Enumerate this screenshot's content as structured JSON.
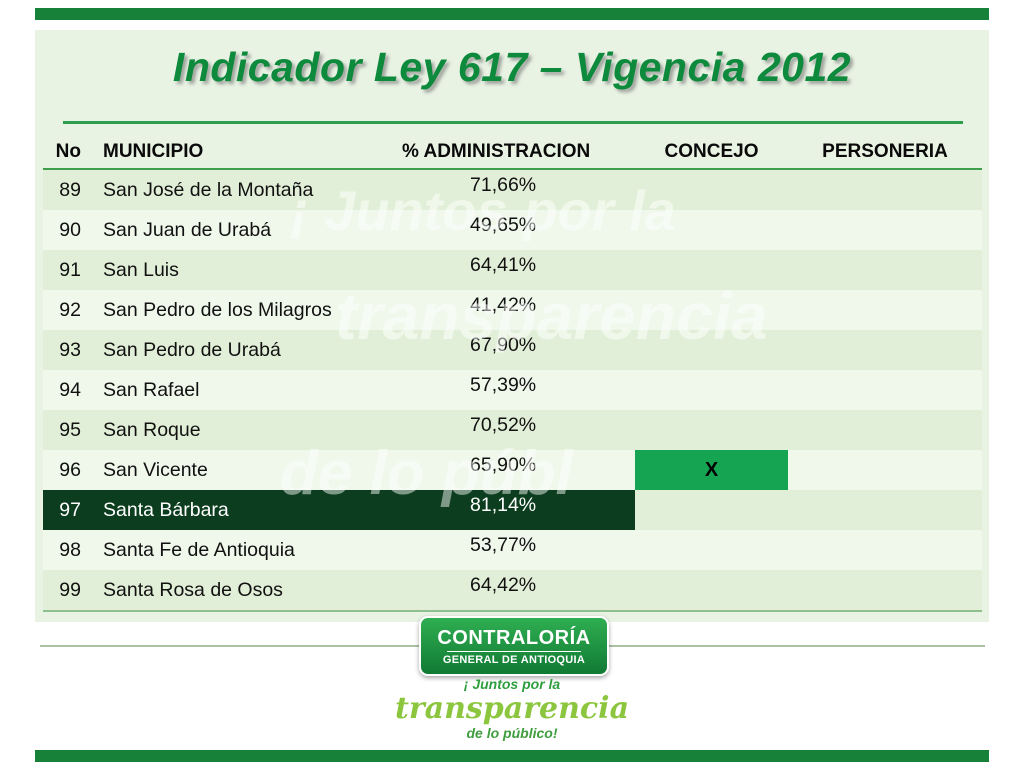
{
  "slide": {
    "title": "Indicador Ley 617 – Vigencia 2012"
  },
  "watermark": {
    "line1": "¡ Juntos por la",
    "line2": "transparencia",
    "line3": "de lo públ"
  },
  "table": {
    "columns": {
      "no": "No",
      "municipio": "MUNICIPIO",
      "administracion": "% ADMINISTRACION",
      "concejo": "CONCEJO",
      "personeria": "PERSONERIA"
    },
    "rows": [
      {
        "no": "89",
        "municipio": "San José de la Montaña",
        "administracion": "71,66%",
        "concejo": "",
        "personeria": "",
        "highlight": false
      },
      {
        "no": "90",
        "municipio": "San Juan de Urabá",
        "administracion": "49,65%",
        "concejo": "",
        "personeria": "",
        "highlight": false
      },
      {
        "no": "91",
        "municipio": "San Luis",
        "administracion": "64,41%",
        "concejo": "",
        "personeria": "",
        "highlight": false
      },
      {
        "no": "92",
        "municipio": "San Pedro de los Milagros",
        "administracion": "41,42%",
        "concejo": "",
        "personeria": "",
        "highlight": false
      },
      {
        "no": "93",
        "municipio": "San Pedro de Urabá",
        "administracion": "67,90%",
        "concejo": "",
        "personeria": "",
        "highlight": false
      },
      {
        "no": "94",
        "municipio": "San Rafael",
        "administracion": "57,39%",
        "concejo": "",
        "personeria": "",
        "highlight": false
      },
      {
        "no": "95",
        "municipio": "San Roque",
        "administracion": "70,52%",
        "concejo": "",
        "personeria": "",
        "highlight": false
      },
      {
        "no": "96",
        "municipio": "San Vicente",
        "administracion": "65,90%",
        "concejo": "X",
        "personeria": "",
        "highlight": false
      },
      {
        "no": "97",
        "municipio": "Santa Bárbara",
        "administracion": "81,14%",
        "concejo": "",
        "personeria": "",
        "highlight": true
      },
      {
        "no": "98",
        "municipio": "Santa Fe de Antioquia",
        "administracion": "53,77%",
        "concejo": "",
        "personeria": "",
        "highlight": false
      },
      {
        "no": "99",
        "municipio": "Santa Rosa de Osos",
        "administracion": "64,42%",
        "concejo": "",
        "personeria": "",
        "highlight": false
      }
    ]
  },
  "logo": {
    "name": "CONTRALORÍA",
    "subtitle": "GENERAL DE ANTIOQUIA",
    "slogan_line1": "¡ Juntos por la",
    "slogan_line2": "transparencia",
    "slogan_line3": "de lo público!"
  },
  "colors": {
    "accent_green": "#17813a",
    "slide_background": "#e9f3e4",
    "highlight_row": "#0b3d1e",
    "mark_cell": "#15a452",
    "title_green": "#0e8a3d"
  }
}
